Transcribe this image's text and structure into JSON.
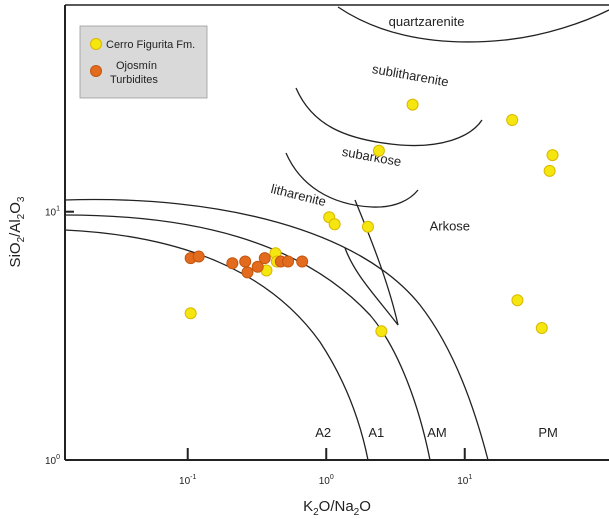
{
  "chart_data": {
    "type": "scatter",
    "title": "",
    "xlabel": {
      "base": "K",
      "sub1": "2",
      "mid": "O/Na",
      "sub2": "2",
      "tail": "O"
    },
    "ylabel": {
      "base": "SiO",
      "sub1": "2",
      "mid": "/Al",
      "sub2": "2",
      "tail": "O",
      "sub3": "3"
    },
    "x_scale": "log",
    "y_scale": "log",
    "xlim": [
      0.013,
      110
    ],
    "ylim": [
      1,
      68
    ],
    "x_ticks": [
      {
        "value": 0.1,
        "base": "10",
        "exp": "-1"
      },
      {
        "value": 1,
        "base": "10",
        "exp": "0"
      },
      {
        "value": 10,
        "base": "10",
        "exp": "1"
      }
    ],
    "y_ticks": [
      {
        "value": 1,
        "base": "10",
        "exp": "0"
      },
      {
        "value": 10,
        "base": "10",
        "exp": "1"
      }
    ],
    "legend_position": "top-left",
    "series": [
      {
        "name": "Cerro Figurita Fm.",
        "color": "#f5e60f",
        "stroke": "#d9b800",
        "points": [
          [
            4.2,
            27
          ],
          [
            2.4,
            17.6
          ],
          [
            22,
            23.4
          ],
          [
            43,
            16.9
          ],
          [
            41,
            14.6
          ],
          [
            1.05,
            9.5
          ],
          [
            1.15,
            8.9
          ],
          [
            2.0,
            8.7
          ],
          [
            0.43,
            6.8
          ],
          [
            0.44,
            6.3
          ],
          [
            0.37,
            5.8
          ],
          [
            0.105,
            3.9
          ],
          [
            2.5,
            3.3
          ],
          [
            24,
            4.4
          ],
          [
            36,
            3.4
          ]
        ]
      },
      {
        "name": "Ojosmín Turbidites",
        "color": "#e36b1d",
        "stroke": "#c4560f",
        "points": [
          [
            0.105,
            6.5
          ],
          [
            0.12,
            6.6
          ],
          [
            0.21,
            6.2
          ],
          [
            0.26,
            6.3
          ],
          [
            0.27,
            5.7
          ],
          [
            0.32,
            6.0
          ],
          [
            0.36,
            6.5
          ],
          [
            0.47,
            6.3
          ],
          [
            0.53,
            6.3
          ],
          [
            0.67,
            6.3
          ]
        ]
      }
    ],
    "legend": [
      {
        "text": "Cerro Figurita Fm."
      },
      {
        "text": "Ojosmín",
        "text2": "Turbidites"
      }
    ],
    "fields": [
      {
        "name": "quartzarenite",
        "x": 5.3,
        "y": 56
      },
      {
        "name": "sublitharenite",
        "x": 4.0,
        "y": 34
      },
      {
        "name": "subarkose",
        "x": 2.1,
        "y": 16
      },
      {
        "name": "litharenite",
        "x": 0.62,
        "y": 11.2
      },
      {
        "name": "Arkose",
        "x": 7.8,
        "y": 8.4
      },
      {
        "name": "A2",
        "x": 0.95,
        "y": 1.24
      },
      {
        "name": "A1",
        "x": 2.3,
        "y": 1.24
      },
      {
        "name": "AM",
        "x": 6.3,
        "y": 1.24
      },
      {
        "name": "PM",
        "x": 40,
        "y": 1.24
      }
    ]
  }
}
